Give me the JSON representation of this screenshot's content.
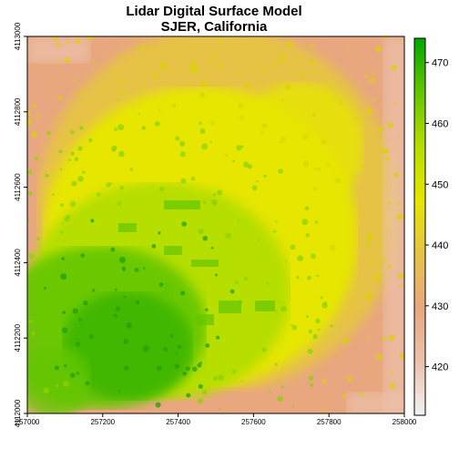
{
  "chart_data": {
    "type": "heatmap",
    "title": "Lidar Digital Surface Model",
    "subtitle": "SJER, California",
    "x_ticks": [
      257000,
      257200,
      257400,
      257600,
      257800,
      258000
    ],
    "y_ticks": [
      4112000,
      4112200,
      4112400,
      4112600,
      4112800,
      4113000
    ],
    "x_tick_labels": [
      "257000",
      "257200",
      "257400",
      "257600",
      "257800",
      "258000"
    ],
    "y_tick_labels": [
      "4112000",
      "4112200",
      "4112400",
      "4112600",
      "4112800",
      "4113000"
    ],
    "xlim": [
      257000,
      258000
    ],
    "ylim": [
      4112000,
      4113000
    ],
    "colorbar": {
      "ticks": [
        420,
        430,
        440,
        450,
        460,
        470
      ],
      "tick_labels": [
        "420",
        "430",
        "440",
        "450",
        "460",
        "470"
      ],
      "range": [
        412,
        474
      ],
      "colors": [
        "#f2f2f2",
        "#ecc1ab",
        "#e8a77f",
        "#e6c345",
        "#e6e600",
        "#b6de00",
        "#63c600",
        "#00a600"
      ]
    },
    "grid": false
  }
}
